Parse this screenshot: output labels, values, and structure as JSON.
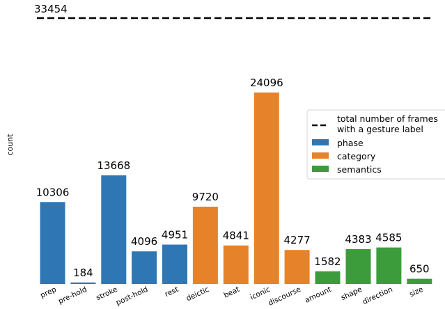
{
  "chart_data": {
    "type": "bar",
    "ylabel": "count",
    "xlabel": "",
    "ylim": [
      0,
      34500
    ],
    "grid": false,
    "categories": [
      "prep",
      "pre-hold",
      "stroke",
      "post-hold",
      "rest",
      "deictic",
      "beat",
      "iconic",
      "discourse",
      "amount",
      "shape",
      "direction",
      "size"
    ],
    "values": [
      10306,
      184,
      13668,
      4096,
      4951,
      9720,
      4841,
      24096,
      4277,
      1582,
      4383,
      4585,
      650
    ],
    "groups": [
      "phase",
      "phase",
      "phase",
      "phase",
      "phase",
      "category",
      "category",
      "category",
      "category",
      "semantics",
      "semantics",
      "semantics",
      "semantics"
    ],
    "reference_line": {
      "value": 33454,
      "label": "33454",
      "legend_label": [
        "total number of frames",
        "with a gesture label"
      ],
      "style": "dashed",
      "color": "#000000"
    },
    "legend": {
      "position": "right",
      "entries": [
        {
          "name": "phase",
          "color": "#2f77b4"
        },
        {
          "name": "category",
          "color": "#e6832a"
        },
        {
          "name": "semantics",
          "color": "#3c9c3b"
        }
      ]
    }
  }
}
